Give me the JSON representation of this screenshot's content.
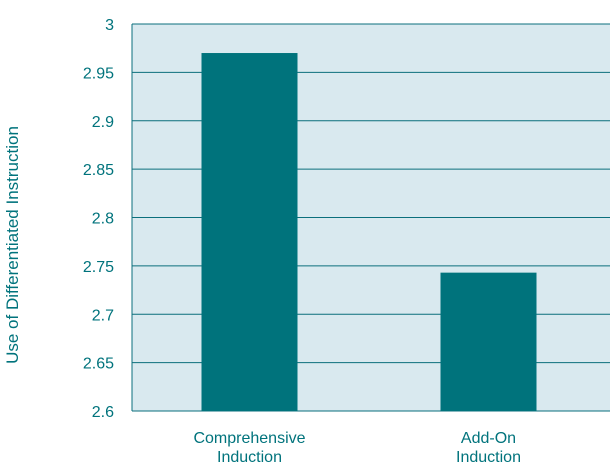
{
  "chart_data": {
    "type": "bar",
    "categories": [
      [
        "Comprehensive",
        "Induction"
      ],
      [
        "Add-On",
        "Induction"
      ]
    ],
    "values": [
      2.97,
      2.743
    ],
    "title": "",
    "xlabel": "",
    "ylabel": "Use of Differentiated Instruction",
    "ylim": [
      2.6,
      3.0
    ],
    "yticks": [
      "2.6",
      "2.65",
      "2.7",
      "2.75",
      "2.8",
      "2.85",
      "2.9",
      "2.95",
      "3"
    ],
    "grid": true,
    "colors": {
      "bar": "#00737c",
      "plot_background": "#d9e9ef",
      "gridline": "#0b6f7c",
      "text": "#00737c"
    }
  }
}
